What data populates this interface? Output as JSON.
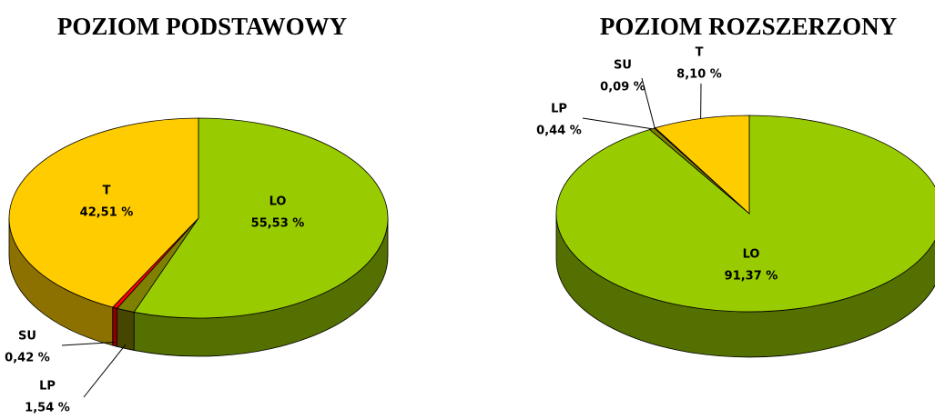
{
  "chart_data": [
    {
      "type": "pie",
      "title": "POZIOM PODSTAWOWY",
      "categories": [
        "LO",
        "LP",
        "SU",
        "T"
      ],
      "values": [
        55.53,
        1.54,
        0.42,
        42.51
      ],
      "value_labels": [
        "55,53 %",
        "1,54 %",
        "0,42 %",
        "42,51 %"
      ],
      "colors": [
        "#99cc00",
        "#808000",
        "#ff0000",
        "#ffcc00"
      ]
    },
    {
      "type": "pie",
      "title": "POZIOM ROZSZERZONY",
      "categories": [
        "LO",
        "LP",
        "SU",
        "T"
      ],
      "values": [
        91.37,
        0.44,
        0.09,
        8.1
      ],
      "value_labels": [
        "91,37 %",
        "0,44 %",
        "0,09 %",
        "8,10 %"
      ],
      "colors": [
        "#99cc00",
        "#808000",
        "#ff0000",
        "#ffcc00"
      ]
    }
  ]
}
